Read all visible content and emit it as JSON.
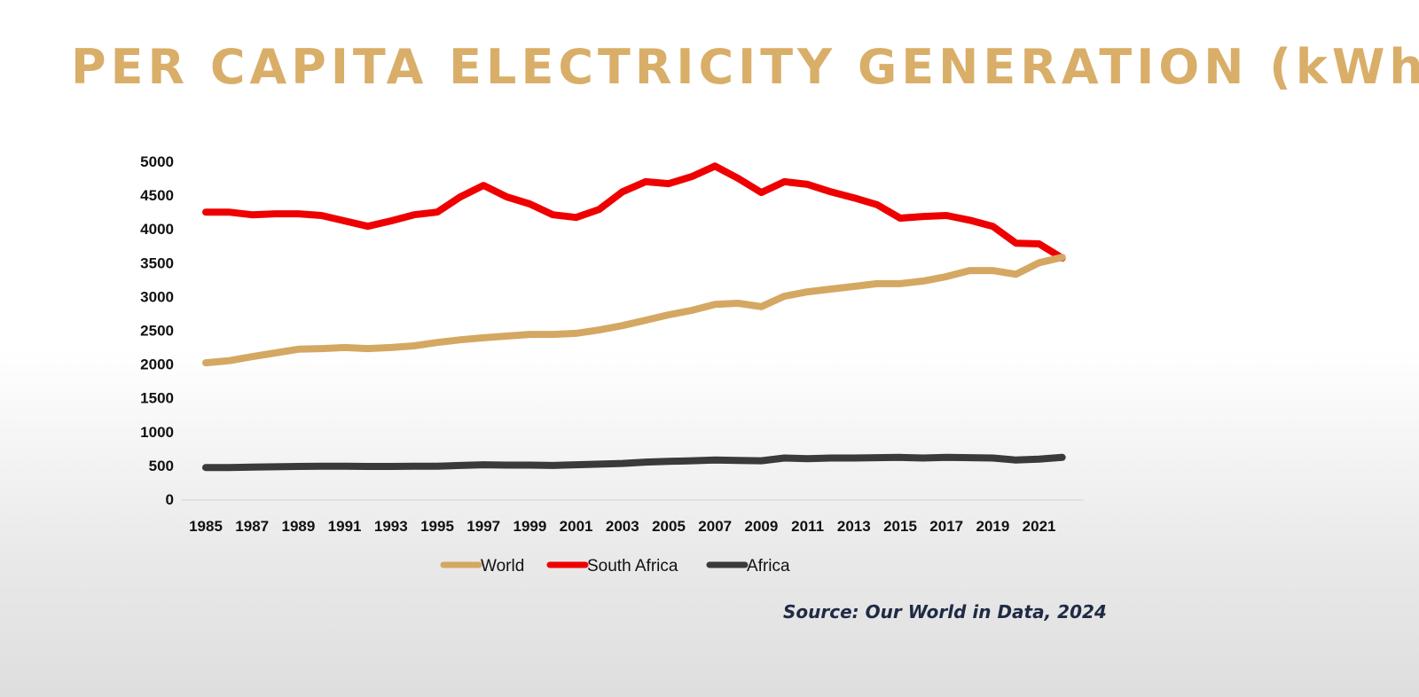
{
  "title": "PER CAPITA ELECTRICITY GENERATION (kWh)",
  "source": "Source: Our World in Data, 2024",
  "chart_data": {
    "type": "line",
    "title": "PER CAPITA ELECTRICITY GENERATION (kWh)",
    "xlabel": "",
    "ylabel": "",
    "ylim": [
      0,
      5000
    ],
    "yticks": [
      "0",
      "500",
      "1000",
      "1500",
      "2000",
      "2500",
      "3000",
      "3500",
      "4000",
      "4500",
      "5000"
    ],
    "xticks": [
      "1985",
      "1987",
      "1989",
      "1991",
      "1993",
      "1995",
      "1997",
      "1999",
      "2001",
      "2003",
      "2005",
      "2007",
      "2009",
      "2011",
      "2013",
      "2015",
      "2017",
      "2019",
      "2021"
    ],
    "x": [
      1985,
      1986,
      1987,
      1988,
      1989,
      1990,
      1991,
      1992,
      1993,
      1994,
      1995,
      1996,
      1997,
      1998,
      1999,
      2000,
      2001,
      2002,
      2003,
      2004,
      2005,
      2006,
      2007,
      2008,
      2009,
      2010,
      2011,
      2012,
      2013,
      2014,
      2015,
      2016,
      2017,
      2018,
      2019,
      2020,
      2021,
      2022
    ],
    "grid": false,
    "legend_position": "bottom",
    "series": [
      {
        "name": "World",
        "color": "#D4A862",
        "values": [
          2020,
          2050,
          2110,
          2165,
          2220,
          2230,
          2245,
          2230,
          2245,
          2270,
          2320,
          2360,
          2390,
          2415,
          2440,
          2440,
          2455,
          2505,
          2570,
          2650,
          2730,
          2795,
          2885,
          2900,
          2850,
          3005,
          3070,
          3110,
          3150,
          3190,
          3190,
          3230,
          3295,
          3385,
          3385,
          3330,
          3500,
          3580
        ]
      },
      {
        "name": "South Africa",
        "color": "#EE0000",
        "values": [
          4250,
          4250,
          4210,
          4225,
          4225,
          4200,
          4120,
          4040,
          4120,
          4210,
          4250,
          4475,
          4645,
          4475,
          4370,
          4210,
          4170,
          4290,
          4550,
          4700,
          4670,
          4775,
          4930,
          4750,
          4540,
          4700,
          4660,
          4550,
          4460,
          4360,
          4160,
          4185,
          4200,
          4130,
          4040,
          3790,
          3780,
          3570
        ]
      },
      {
        "name": "Africa",
        "color": "#3a3a3a",
        "values": [
          470,
          470,
          475,
          480,
          485,
          490,
          490,
          485,
          485,
          490,
          490,
          500,
          510,
          505,
          505,
          500,
          510,
          520,
          530,
          550,
          560,
          570,
          580,
          575,
          570,
          610,
          600,
          610,
          610,
          615,
          620,
          610,
          620,
          615,
          610,
          580,
          595,
          620
        ]
      }
    ]
  }
}
